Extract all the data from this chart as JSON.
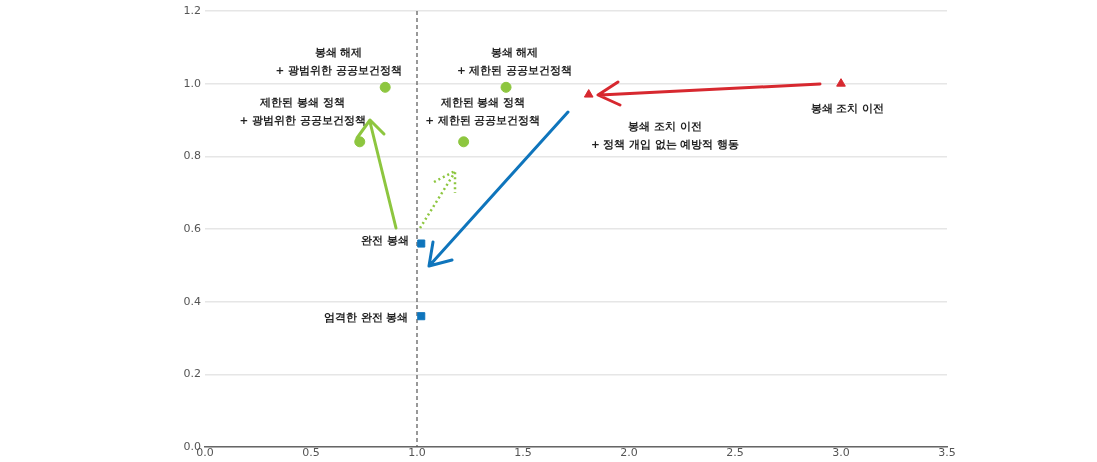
{
  "chart_data": {
    "type": "scatter",
    "series": [
      {
        "color": "#8dc63f",
        "marker": "circle",
        "x": [
          0.85,
          1.42,
          0.73,
          1.22
        ],
        "values": [
          0.99,
          0.99,
          0.84,
          0.84
        ]
      },
      {
        "color": "#d7282f",
        "marker": "triangle",
        "x": [
          1.81,
          3.0
        ],
        "values": [
          0.97,
          1.0
        ]
      },
      {
        "color": "#0f75bc",
        "marker": "square",
        "x": [
          1.02,
          1.02
        ],
        "values": [
          0.56,
          0.36
        ]
      }
    ],
    "xlim": [
      0,
      3.5
    ],
    "ylim": [
      0,
      1.2
    ],
    "xticks": [
      {
        "value": 0,
        "label": "0.0"
      },
      {
        "value": 0.5,
        "label": "0.5"
      },
      {
        "value": 1,
        "label": "1.0"
      },
      {
        "value": 1.5,
        "label": "1.5"
      },
      {
        "value": 2,
        "label": "2.0"
      },
      {
        "value": 2.5,
        "label": "2.5"
      },
      {
        "value": 3,
        "label": "3.0"
      },
      {
        "value": 3.5,
        "label": "3.5"
      }
    ],
    "yticks": [
      {
        "value": 0,
        "label": "0.0"
      },
      {
        "value": 0.2,
        "label": "0.2"
      },
      {
        "value": 0.4,
        "label": "0.4"
      },
      {
        "value": 0.6,
        "label": "0.6"
      },
      {
        "value": 0.8,
        "label": "0.8"
      },
      {
        "value": 1,
        "label": "1.0"
      },
      {
        "value": 1.2,
        "label": "1.2"
      }
    ],
    "grid": "y",
    "legend": false,
    "ref_lines": [
      {
        "axis": "x",
        "value": 1,
        "line_style": "dashed",
        "color": "#555555"
      }
    ],
    "annotations": [
      "봉쇄 해제\n+ 광범위한 공공보건정책",
      "봉쇄 해제\n+ 제한된 공공보건정책",
      "제한된 봉쇄 정책\n+ 광범위한 공공보건정책",
      "제한된 봉쇄 정책\n+ 제한된 공공보건정책",
      "봉쇄 조치 이전",
      "봉쇄 조치 이전\n+ 정책 개입 없는 예방적 행동",
      "완전 봉쇄",
      "엄격한 완전 봉쇄"
    ]
  }
}
